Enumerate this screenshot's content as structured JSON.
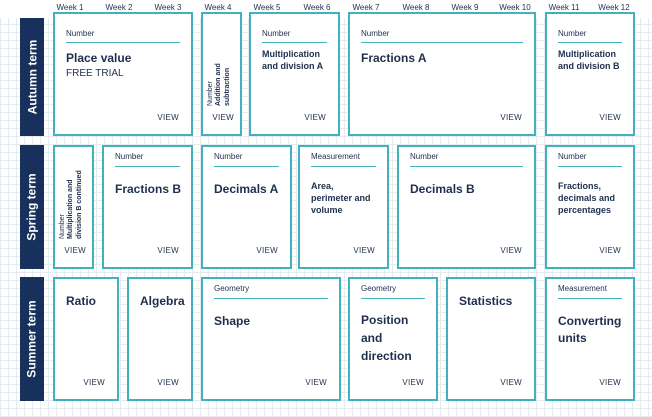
{
  "weeks": [
    "Week 1",
    "Week 2",
    "Week 3",
    "Week 4",
    "Week 5",
    "Week 6",
    "Week 7",
    "Week 8",
    "Week 9",
    "Week 10",
    "Week 11",
    "Week 12"
  ],
  "terms": {
    "autumn": "Autumn term",
    "spring": "Spring term",
    "summer": "Summer term"
  },
  "view_label": "VIEW",
  "autumn": {
    "place_value": {
      "category": "Number",
      "title": "Place value",
      "subtitle": "FREE TRIAL"
    },
    "addition": {
      "category": "Number",
      "title_line1": "Addition and",
      "title_line2": "subtraction"
    },
    "mult_div_a": {
      "category": "Number",
      "title_line1": "Multiplication",
      "title_line2": "and division A"
    },
    "fractions_a": {
      "category": "Number",
      "title": "Fractions A"
    },
    "mult_div_b": {
      "category": "Number",
      "title_line1": "Multiplication",
      "title_line2": "and division B"
    }
  },
  "spring": {
    "mult_div_b_cont": {
      "category": "Number",
      "title_line1": "Multiplication and",
      "title_line2": "division B continued"
    },
    "fractions_b": {
      "category": "Number",
      "title": "Fractions B"
    },
    "decimals_a": {
      "category": "Number",
      "title": "Decimals A"
    },
    "area": {
      "category": "Measurement",
      "title_line1": "Area,",
      "title_line2": "perimeter and",
      "title_line3": "volume"
    },
    "decimals_b": {
      "category": "Number",
      "title": "Decimals B"
    },
    "fdp": {
      "category": "Number",
      "title_line1": "Fractions,",
      "title_line2": "decimals and",
      "title_line3": "percentages"
    }
  },
  "summer": {
    "ratio": {
      "title": "Ratio"
    },
    "algebra": {
      "title": "Algebra"
    },
    "shape": {
      "category": "Geometry",
      "title": "Shape"
    },
    "position": {
      "category": "Geometry",
      "title_line1": "Position",
      "title_line2": "and",
      "title_line3": "direction"
    },
    "statistics": {
      "title": "Statistics"
    },
    "converting": {
      "category": "Measurement",
      "title_line1": "Converting",
      "title_line2": "units"
    }
  }
}
